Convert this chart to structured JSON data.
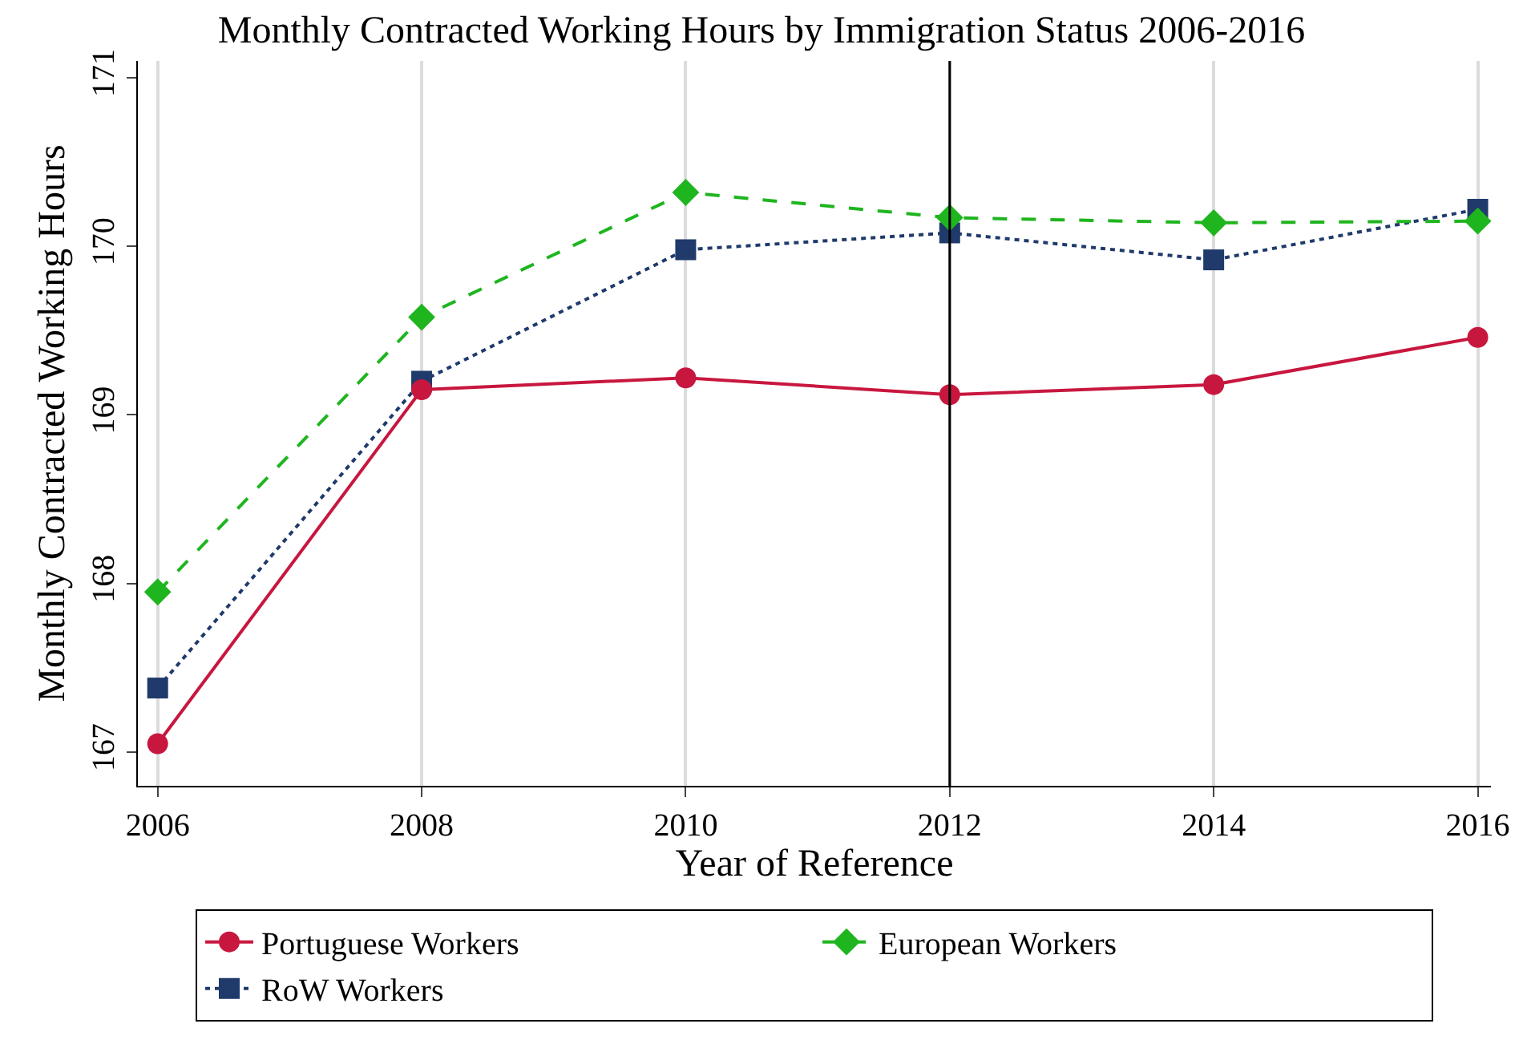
{
  "chart_data": {
    "type": "line",
    "title": "Monthly Contracted Working Hours by Immigration Status 2006-2016",
    "xlabel": "Year of Reference",
    "ylabel": "Monthly Contracted Working Hours",
    "x": [
      2006,
      2008,
      2010,
      2012,
      2014,
      2016
    ],
    "series": [
      {
        "name": "Portuguese Workers",
        "color": "#c8173f",
        "values": [
          167.05,
          169.15,
          169.22,
          169.12,
          169.18,
          169.46
        ],
        "marker": "circle",
        "line_style": "solid"
      },
      {
        "name": "European Workers",
        "color": "#1fb51f",
        "values": [
          167.95,
          169.58,
          170.32,
          170.17,
          170.14,
          170.15
        ],
        "marker": "diamond",
        "line_style": "dashed"
      },
      {
        "name": "RoW Workers",
        "color": "#1f3a6b",
        "values": [
          167.38,
          169.2,
          169.98,
          170.08,
          169.92,
          170.22
        ],
        "marker": "square",
        "line_style": "dotted"
      }
    ],
    "xlim": [
      2005.85,
      2016.1
    ],
    "xticks": [
      2006,
      2008,
      2010,
      2012,
      2014,
      2016
    ],
    "ylim": [
      166.8,
      171.1
    ],
    "yticks": [
      167,
      168,
      169,
      170,
      171
    ],
    "grid": "x",
    "legend": "bottom",
    "ref_lines": [
      {
        "axis": "x",
        "value": 2012,
        "color": "#000000",
        "line_style": "solid"
      }
    ]
  }
}
